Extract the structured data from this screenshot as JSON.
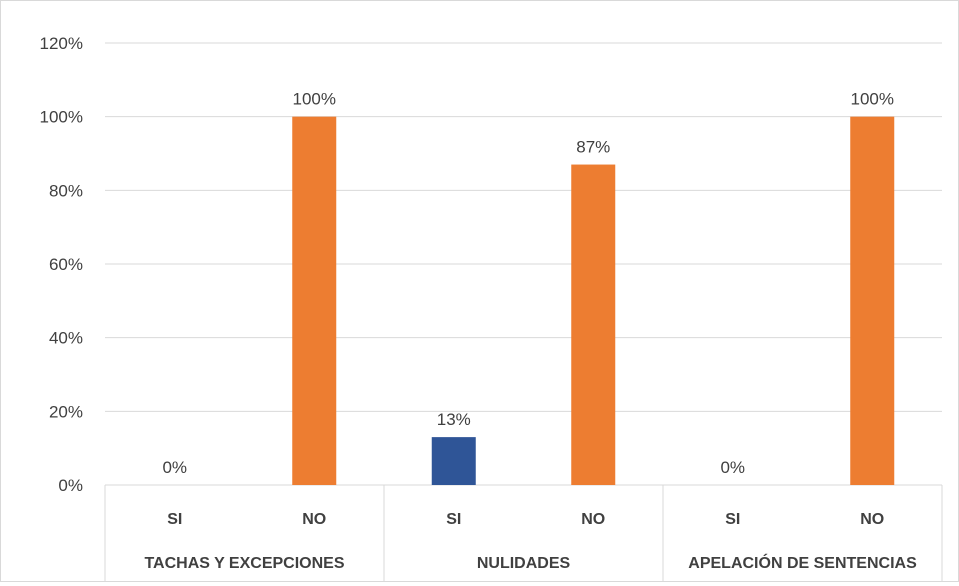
{
  "chart_data": {
    "type": "bar",
    "groups": [
      {
        "label": "TACHAS Y EXCEPCIONES",
        "bars": [
          {
            "category": "SI",
            "value": 0,
            "label": "0%"
          },
          {
            "category": "NO",
            "value": 100,
            "label": "100%"
          }
        ]
      },
      {
        "label": "NULIDADES",
        "bars": [
          {
            "category": "SI",
            "value": 13,
            "label": "13%"
          },
          {
            "category": "NO",
            "value": 87,
            "label": "87%"
          }
        ]
      },
      {
        "label": "APELACIÓN DE SENTENCIAS",
        "bars": [
          {
            "category": "SI",
            "value": 0,
            "label": "0%"
          },
          {
            "category": "NO",
            "value": 100,
            "label": "100%"
          }
        ]
      }
    ],
    "yticks": [
      0,
      20,
      40,
      60,
      80,
      100,
      120
    ],
    "ytick_labels": [
      "0%",
      "20%",
      "40%",
      "60%",
      "80%",
      "100%",
      "120%"
    ],
    "ylim": [
      0,
      120
    ],
    "grid": true,
    "colors": {
      "SI": "#2F5597",
      "NO": "#ED7D31",
      "grid": "#d9d9d9",
      "text": "#404040"
    }
  }
}
